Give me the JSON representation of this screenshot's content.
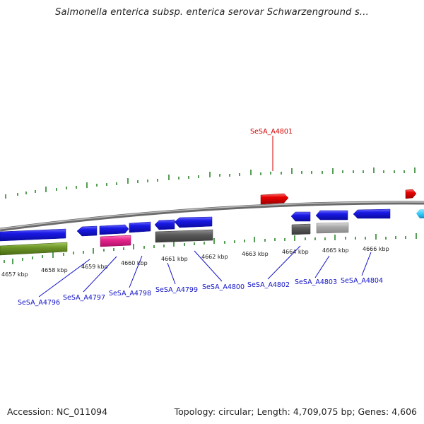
{
  "title": "Salmonella enterica subsp. enterica serovar Schwarzenground s...",
  "footer": {
    "accession": "Accession: NC_011094",
    "summary": "Topology: circular; Length: 4,709,075 bp; Genes: 4,606"
  },
  "colors": {
    "cds_blue": "#1a1ae6",
    "highlight_red": "#e60000",
    "magenta": "#e6268c",
    "olive": "#6e9628",
    "dark_gray": "#5a5a5a",
    "light_gray": "#aaaaaa",
    "cyan": "#33ccff",
    "tick_green": "#1e7d1e",
    "label_blue": "#1010c8",
    "label_red": "#d00000"
  },
  "kbp_labels": [
    "4657 kbp",
    "4658 kbp",
    "4659 kbp",
    "4660 kbp",
    "4661 kbp",
    "4662 kbp",
    "4663 kbp",
    "4664 kbp",
    "4665 kbp",
    "4666 kbp"
  ],
  "genes": [
    {
      "name": "SeSA_A4801",
      "color": "red"
    },
    {
      "name": "SeSA_A4796",
      "color": "blue"
    },
    {
      "name": "SeSA_A4797",
      "color": "blue"
    },
    {
      "name": "SeSA_A4798",
      "color": "blue"
    },
    {
      "name": "SeSA_A4799",
      "color": "blue"
    },
    {
      "name": "SeSA_A4800",
      "color": "blue"
    },
    {
      "name": "SeSA_A4802",
      "color": "blue"
    },
    {
      "name": "SeSA_A4803",
      "color": "blue"
    },
    {
      "name": "SeSA_A4804",
      "color": "blue"
    }
  ]
}
